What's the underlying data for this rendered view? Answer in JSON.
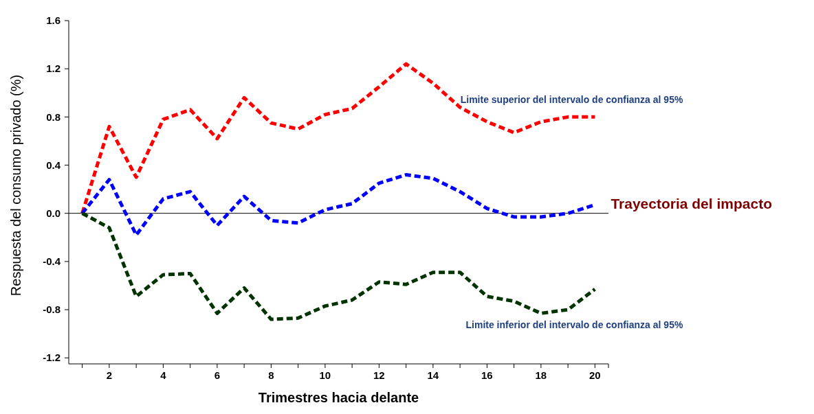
{
  "chart_data": {
    "type": "line",
    "xlabel": "Trimestres hacia delante",
    "ylabel": "Respuesta del consumo privado (%)",
    "x": [
      1,
      2,
      3,
      4,
      5,
      6,
      7,
      8,
      9,
      10,
      11,
      12,
      13,
      14,
      15,
      16,
      17,
      18,
      19,
      20
    ],
    "series": [
      {
        "name": "Limite superior del intervalo de confianza al 95%",
        "color": "#ff0000",
        "values": [
          0,
          0.72,
          0.3,
          0.78,
          0.86,
          0.62,
          0.96,
          0.75,
          0.7,
          0.82,
          0.87,
          1.05,
          1.24,
          1.08,
          0.88,
          0.76,
          0.67,
          0.76,
          0.8,
          0.8
        ]
      },
      {
        "name": "Trayectoria del impacto",
        "color": "#0000ff",
        "values": [
          0,
          0.28,
          -0.18,
          0.12,
          0.18,
          -0.1,
          0.14,
          -0.06,
          -0.08,
          0.03,
          0.08,
          0.25,
          0.32,
          0.29,
          0.18,
          0.04,
          -0.03,
          -0.03,
          0,
          0.07
        ]
      },
      {
        "name": "Limite inferior del intervalo de confianza al 95%",
        "color": "#003300",
        "values": [
          0,
          -0.12,
          -0.69,
          -0.51,
          -0.5,
          -0.83,
          -0.62,
          -0.88,
          -0.87,
          -0.77,
          -0.72,
          -0.57,
          -0.59,
          -0.49,
          -0.49,
          -0.69,
          -0.73,
          -0.83,
          -0.8,
          -0.63
        ]
      }
    ],
    "xlim": [
      0.5,
      20.5
    ],
    "xticks": [
      {
        "value": 1,
        "label": null
      },
      2,
      {
        "value": 3,
        "label": null
      },
      4,
      {
        "value": 5,
        "label": null
      },
      6,
      {
        "value": 7,
        "label": null
      },
      8,
      {
        "value": 9,
        "label": null
      },
      10,
      {
        "value": 11,
        "label": null
      },
      12,
      {
        "value": 13,
        "label": null
      },
      14,
      {
        "value": 15,
        "label": null
      },
      16,
      {
        "value": 17,
        "label": null
      },
      18,
      {
        "value": 19,
        "label": null
      },
      20
    ],
    "ylim": [
      -1.25,
      1.6
    ],
    "yticks": [
      {
        "value": -1.2,
        "label": "-1.2"
      },
      {
        "value": -0.8,
        "label": "-0.8"
      },
      {
        "value": -0.4,
        "label": "-0.4"
      },
      {
        "value": 0,
        "label": "0.0"
      },
      {
        "value": 0.4,
        "label": "0.4"
      },
      {
        "value": 0.8,
        "label": "0.8"
      },
      {
        "value": 1.2,
        "label": "1.2"
      },
      {
        "value": 1.6,
        "label": "1.6"
      }
    ],
    "ref_lines": [
      {
        "axis": "y",
        "value": 0,
        "color": "#000000"
      }
    ],
    "grid": false,
    "line_style": "dashed"
  }
}
